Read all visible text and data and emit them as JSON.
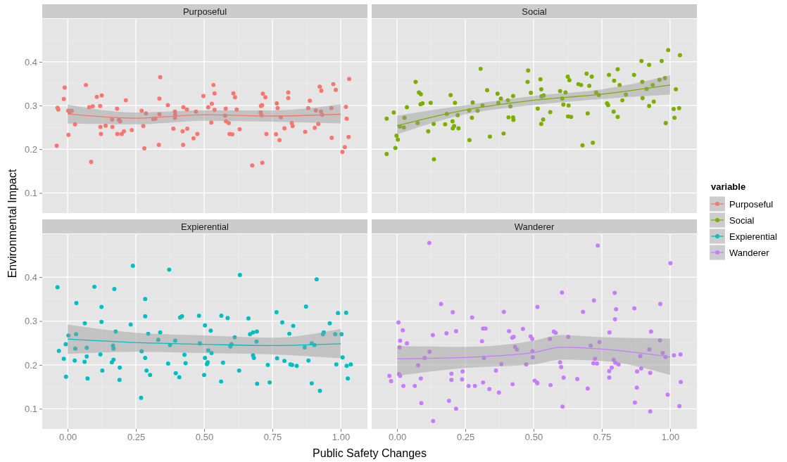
{
  "chart_data": [
    {
      "type": "scatter",
      "title": "Purposeful",
      "xlabel": "Public Safety Changes",
      "ylabel": "Environmental Impact",
      "legend": "right",
      "legend_title": "variable",
      "xlim": [
        -0.093,
        1.098
      ],
      "ylim": [
        0.054,
        0.498
      ],
      "yticks": [
        0.1,
        0.2,
        0.3,
        0.4
      ],
      "grid": true,
      "tick_labels": "y",
      "series": [
        {
          "name": "Purposeful",
          "color": "#f8766d",
          "marker": "circle",
          "x": [
            -0.04,
            -0.037,
            -0.034,
            -0.014,
            -0.011,
            0.002,
            0.003,
            0.007,
            0.015,
            0.027,
            0.067,
            0.079,
            0.086,
            0.092,
            0.107,
            0.119,
            0.12,
            0.122,
            0.125,
            0.139,
            0.163,
            0.164,
            0.181,
            0.182,
            0.188,
            0.192,
            0.198,
            0.206,
            0.213,
            0.235,
            0.271,
            0.277,
            0.281,
            0.287,
            0.314,
            0.321,
            0.334,
            0.336,
            0.336,
            0.339,
            0.367,
            0.387,
            0.393,
            0.394,
            0.393,
            0.421,
            0.423,
            0.424,
            0.437,
            0.438,
            0.461,
            0.47,
            0.475,
            0.497,
            0.515,
            0.526,
            0.528,
            0.534,
            0.538,
            0.538,
            0.579,
            0.577,
            0.58,
            0.59,
            0.593,
            0.603,
            0.607,
            0.613,
            0.619,
            0.63,
            0.676,
            0.707,
            0.708,
            0.71,
            0.712,
            0.715,
            0.713,
            0.724,
            0.728,
            0.763,
            0.766,
            0.769,
            0.776,
            0.781,
            0.794,
            0.808,
            0.808,
            0.821,
            0.824,
            0.87,
            0.881,
            0.887,
            0.905,
            0.909,
            0.918,
            0.923,
            0.928,
            0.929,
            0.932,
            0.966,
            0.967,
            0.973,
            0.982,
            1.006,
            1.015,
            1.019,
            1.022,
            1.029,
            1.031
          ],
          "values": [
            0.208,
            0.295,
            0.291,
            0.315,
            0.341,
            0.288,
            0.233,
            0.284,
            0.288,
            0.257,
            0.347,
            0.296,
            0.171,
            0.298,
            0.32,
            0.299,
            0.251,
            0.235,
            0.323,
            0.254,
            0.268,
            0.251,
            0.293,
            0.235,
            0.267,
            0.264,
            0.235,
            0.241,
            0.312,
            0.244,
            0.288,
            0.253,
            0.202,
            0.282,
            0.269,
            0.27,
            0.21,
            0.28,
            0.316,
            0.365,
            0.301,
            0.247,
            0.286,
            0.279,
            0.272,
            0.241,
            0.21,
            0.296,
            0.291,
            0.247,
            0.225,
            0.286,
            0.235,
            0.322,
            0.296,
            0.261,
            0.304,
            0.347,
            0.328,
            0.29,
            0.293,
            0.277,
            0.264,
            0.26,
            0.235,
            0.234,
            0.328,
            0.319,
            0.291,
            0.246,
            0.163,
            0.284,
            0.299,
            0.278,
            0.301,
            0.327,
            0.169,
            0.319,
            0.235,
            0.234,
            0.305,
            0.294,
            0.221,
            0.273,
            0.248,
            0.33,
            0.317,
            0.26,
            0.253,
            0.24,
            0.294,
            0.311,
            0.249,
            0.289,
            0.258,
            0.343,
            0.286,
            0.334,
            0.279,
            0.294,
            0.226,
            0.349,
            0.336,
            0.194,
            0.205,
            0.297,
            0.27,
            0.228,
            0.361
          ]
        },
        {
          "type": "line",
          "color": "#f8766d",
          "x": [
            0,
            0.25,
            0.5,
            0.75,
            1
          ],
          "values": [
            0.281,
            0.271,
            0.279,
            0.276,
            0.28
          ],
          "lower": [
            0.259,
            0.257,
            0.265,
            0.263,
            0.259
          ],
          "upper": [
            0.302,
            0.284,
            0.289,
            0.289,
            0.303
          ]
        }
      ]
    },
    {
      "type": "scatter",
      "title": "Social",
      "xlim": [
        -0.093,
        1.098
      ],
      "ylim": [
        0.054,
        0.498
      ],
      "grid": true,
      "tick_labels": false,
      "series": [
        {
          "name": "Social",
          "color": "#7cae00",
          "marker": "circle",
          "x": [
            -0.038,
            -0.038,
            -0.012,
            -0.006,
            -0.002,
            0.003,
            0.01,
            0.025,
            0.027,
            0.036,
            0.068,
            0.075,
            0.08,
            0.087,
            0.086,
            0.093,
            0.114,
            0.123,
            0.134,
            0.135,
            0.176,
            0.182,
            0.196,
            0.203,
            0.204,
            0.209,
            0.212,
            0.222,
            0.225,
            0.265,
            0.264,
            0.274,
            0.277,
            0.295,
            0.306,
            0.313,
            0.33,
            0.34,
            0.368,
            0.371,
            0.38,
            0.39,
            0.406,
            0.408,
            0.415,
            0.425,
            0.425,
            0.426,
            0.478,
            0.48,
            0.49,
            0.515,
            0.525,
            0.528,
            0.537,
            0.529,
            0.535,
            0.528,
            0.561,
            0.597,
            0.605,
            0.609,
            0.617,
            0.625,
            0.631,
            0.628,
            0.626,
            0.637,
            0.664,
            0.674,
            0.679,
            0.694,
            0.698,
            0.704,
            0.713,
            0.717,
            0.729,
            0.739,
            0.769,
            0.773,
            0.776,
            0.793,
            0.795,
            0.808,
            0.808,
            0.815,
            0.825,
            0.838,
            0.868,
            0.895,
            0.898,
            0.899,
            0.914,
            0.923,
            0.923,
            0.936,
            0.94,
            0.961,
            0.969,
            0.981,
            0.984,
            0.993,
            1.013,
            1.016,
            1.021,
            1.033,
            1.036
          ],
          "values": [
            0.27,
            0.189,
            0.284,
            0.203,
            0.231,
            0.222,
            0.252,
            0.25,
            0.272,
            0.296,
            0.354,
            0.26,
            0.33,
            0.326,
            0.303,
            0.305,
            0.241,
            0.306,
            0.258,
            0.177,
            0.257,
            0.281,
            0.324,
            0.264,
            0.248,
            0.253,
            0.306,
            0.278,
            0.248,
            0.221,
            0.289,
            0.272,
            0.307,
            0.288,
            0.384,
            0.3,
            0.335,
            0.229,
            0.327,
            0.306,
            0.316,
            0.236,
            0.312,
            0.273,
            0.298,
            0.322,
            0.273,
            0.267,
            0.354,
            0.38,
            0.329,
            0.293,
            0.36,
            0.337,
            0.323,
            0.321,
            0.268,
            0.258,
            0.285,
            0.333,
            0.316,
            0.302,
            0.33,
            0.366,
            0.358,
            0.3,
            0.275,
            0.274,
            0.349,
            0.347,
            0.209,
            0.373,
            0.282,
            0.345,
            0.366,
            0.215,
            0.33,
            0.324,
            0.305,
            0.301,
            0.37,
            0.286,
            0.357,
            0.383,
            0.274,
            0.347,
            0.312,
            0.325,
            0.37,
            0.402,
            0.354,
            0.317,
            0.338,
            0.393,
            0.299,
            0.347,
            0.309,
            0.359,
            0.402,
            0.363,
            0.26,
            0.427,
            0.292,
            0.272,
            0.337,
            0.294,
            0.415
          ]
        },
        {
          "type": "line",
          "color": "#7cae00",
          "x": [
            0,
            0.25,
            0.5,
            0.75,
            1
          ],
          "values": [
            0.254,
            0.29,
            0.312,
            0.326,
            0.347
          ],
          "lower": [
            0.234,
            0.28,
            0.301,
            0.315,
            0.325
          ],
          "upper": [
            0.277,
            0.301,
            0.322,
            0.337,
            0.369
          ]
        }
      ]
    },
    {
      "type": "scatter",
      "title": "Expierential",
      "xlim": [
        -0.093,
        1.098
      ],
      "ylim": [
        0.054,
        0.498
      ],
      "xticks": [
        {
          "value": 0,
          "label": "0.00"
        },
        {
          "value": 0.25,
          "label": "0.25"
        },
        {
          "value": 0.5,
          "label": "0.50"
        },
        {
          "value": 0.75,
          "label": "0.75"
        },
        {
          "value": 1,
          "label": "1.00"
        }
      ],
      "yticks": [
        0.1,
        0.2,
        0.3,
        0.4
      ],
      "grid": true,
      "series": [
        {
          "name": "Expierential",
          "color": "#00bfc4",
          "marker": "circle",
          "x": [
            -0.037,
            -0.032,
            -0.014,
            -0.007,
            -0.006,
            0.003,
            0.026,
            0.028,
            0.031,
            0.032,
            0.063,
            0.062,
            0.07,
            0.07,
            0.073,
            0.098,
            0.12,
            0.124,
            0.124,
            0.127,
            0.162,
            0.166,
            0.168,
            0.168,
            0.171,
            0.176,
            0.19,
            0.191,
            0.231,
            0.239,
            0.269,
            0.271,
            0.284,
            0.284,
            0.284,
            0.289,
            0.295,
            0.302,
            0.332,
            0.339,
            0.368,
            0.372,
            0.375,
            0.394,
            0.396,
            0.409,
            0.412,
            0.419,
            0.428,
            0.432,
            0.481,
            0.484,
            0.5,
            0.503,
            0.503,
            0.51,
            0.513,
            0.515,
            0.524,
            0.527,
            0.562,
            0.563,
            0.569,
            0.586,
            0.596,
            0.6,
            0.612,
            0.628,
            0.631,
            0.662,
            0.668,
            0.679,
            0.679,
            0.682,
            0.693,
            0.692,
            0.694,
            0.733,
            0.74,
            0.765,
            0.767,
            0.786,
            0.794,
            0.812,
            0.816,
            0.822,
            0.826,
            0.839,
            0.868,
            0.873,
            0.882,
            0.894,
            0.894,
            0.904,
            0.912,
            0.924,
            0.935,
            0.938,
            0.96,
            0.98,
            0.984,
            0.99,
            1.003,
            1.007,
            1.02,
            1.022,
            1.026,
            1.037
          ],
          "values": [
            0.377,
            0.232,
            0.214,
            0.247,
            0.173,
            0.267,
            0.21,
            0.237,
            0.27,
            0.341,
            0.295,
            0.207,
            0.239,
            0.219,
            0.169,
            0.378,
            0.224,
            0.332,
            0.298,
            0.187,
            0.206,
            0.244,
            0.237,
            0.212,
            0.373,
            0.276,
            0.166,
            0.194,
            0.292,
            0.426,
            0.125,
            0.231,
            0.35,
            0.311,
            0.216,
            0.187,
            0.271,
            0.177,
            0.257,
            0.274,
            0.203,
            0.417,
            0.245,
            0.255,
            0.181,
            0.172,
            0.308,
            0.311,
            0.223,
            0.204,
            0.312,
            0.249,
            0.177,
            0.29,
            0.216,
            0.202,
            0.206,
            0.233,
            0.278,
            0.227,
            0.162,
            0.312,
            0.205,
            0.307,
            0.242,
            0.247,
            0.263,
            0.187,
            0.405,
            0.306,
            0.27,
            0.274,
            0.222,
            0.216,
            0.276,
            0.253,
            0.157,
            0.2,
            0.16,
            0.32,
            0.215,
            0.297,
            0.209,
            0.271,
            0.201,
            0.2,
            0.289,
            0.198,
            0.24,
            0.333,
            0.21,
            0.158,
            0.249,
            0.245,
            0.395,
            0.141,
            0.27,
            0.274,
            0.295,
            0.27,
            0.201,
            0.318,
            0.27,
            0.217,
            0.319,
            0.198,
            0.169,
            0.201
          ]
        },
        {
          "type": "line",
          "color": "#00bfc4",
          "x": [
            0,
            0.25,
            0.5,
            0.75,
            1
          ],
          "values": [
            0.259,
            0.251,
            0.247,
            0.244,
            0.248
          ],
          "lower": [
            0.225,
            0.23,
            0.227,
            0.224,
            0.215
          ],
          "upper": [
            0.292,
            0.273,
            0.267,
            0.262,
            0.282
          ]
        }
      ]
    },
    {
      "type": "scatter",
      "title": "Wanderer",
      "xlim": [
        -0.093,
        1.098
      ],
      "ylim": [
        0.054,
        0.498
      ],
      "xticks": [
        {
          "value": 0,
          "label": "0.00"
        },
        {
          "value": 0.25,
          "label": "0.25"
        },
        {
          "value": 0.5,
          "label": "0.50"
        },
        {
          "value": 0.75,
          "label": "0.75"
        },
        {
          "value": 1,
          "label": "1.00"
        }
      ],
      "grid": true,
      "tick_labels": "x",
      "series": [
        {
          "name": "Wanderer",
          "color": "#c77cff",
          "marker": "circle",
          "x": [
            -0.028,
            -0.022,
            0.005,
            0.009,
            0.007,
            0.011,
            0.011,
            0.021,
            0.023,
            0.036,
            0.065,
            0.077,
            0.087,
            0.089,
            0.101,
            0.118,
            0.119,
            0.131,
            0.132,
            0.161,
            0.181,
            0.19,
            0.199,
            0.199,
            0.204,
            0.216,
            0.216,
            0.238,
            0.24,
            0.262,
            0.275,
            0.285,
            0.311,
            0.315,
            0.315,
            0.318,
            0.324,
            0.338,
            0.362,
            0.373,
            0.382,
            0.391,
            0.41,
            0.422,
            0.427,
            0.423,
            0.432,
            0.439,
            0.461,
            0.473,
            0.489,
            0.495,
            0.496,
            0.497,
            0.504,
            0.512,
            0.514,
            0.514,
            0.56,
            0.562,
            0.574,
            0.581,
            0.597,
            0.601,
            0.604,
            0.606,
            0.61,
            0.627,
            0.66,
            0.681,
            0.698,
            0.709,
            0.719,
            0.721,
            0.725,
            0.732,
            0.735,
            0.741,
            0.777,
            0.777,
            0.778,
            0.786,
            0.793,
            0.797,
            0.799,
            0.798,
            0.802,
            0.811,
            0.869,
            0.871,
            0.878,
            0.879,
            0.891,
            0.894,
            0.924,
            0.927,
            0.927,
            0.93,
            0.963,
            0.964,
            0.973,
            0.983,
            0.991,
            1.001,
            1.014,
            1.038,
            1.039,
            1.034
          ],
          "values": [
            0.175,
            0.163,
            0.297,
            0.24,
            0.179,
            0.255,
            0.175,
            0.279,
            0.152,
            0.249,
            0.152,
            0.199,
            0.169,
            0.113,
            0.216,
            0.478,
            0.23,
            0.268,
            0.072,
            0.339,
            0.272,
            0.118,
            0.18,
            0.166,
            0.32,
            0.277,
            0.1,
            0.167,
            0.185,
            0.152,
            0.308,
            0.152,
            0.254,
            0.16,
            0.283,
            0.216,
            0.283,
            0.145,
            0.187,
            0.137,
            0.202,
            0.321,
            0.277,
            0.262,
            0.264,
            0.156,
            0.241,
            0.235,
            0.282,
            0.201,
            0.265,
            0.259,
            0.231,
            0.217,
            0.164,
            0.16,
            0.158,
            0.332,
            0.259,
            0.154,
            0.276,
            0.273,
            0.206,
            0.195,
            0.365,
            0.105,
            0.171,
            0.264,
            0.168,
            0.321,
            0.146,
            0.244,
            0.204,
            0.347,
            0.214,
            0.203,
            0.472,
            0.252,
            0.171,
            0.186,
            0.274,
            0.194,
            0.212,
            0.364,
            0.205,
            0.304,
            0.327,
            0.201,
            0.329,
            0.114,
            0.148,
            0.185,
            0.22,
            0.192,
            0.235,
            0.182,
            0.094,
            0.276,
            0.256,
            0.339,
            0.227,
            0.218,
            0.132,
            0.432,
            0.222,
            0.224,
            0.161,
            0.106
          ]
        },
        {
          "type": "line",
          "color": "#c77cff",
          "x": [
            0,
            0.25,
            0.5,
            0.6,
            0.75,
            1
          ],
          "values": [
            0.214,
            0.217,
            0.228,
            0.24,
            0.236,
            0.218
          ],
          "lower": [
            0.175,
            0.193,
            0.201,
            0.212,
            0.209,
            0.177
          ],
          "upper": [
            0.243,
            0.241,
            0.255,
            0.268,
            0.263,
            0.26
          ]
        }
      ]
    }
  ]
}
